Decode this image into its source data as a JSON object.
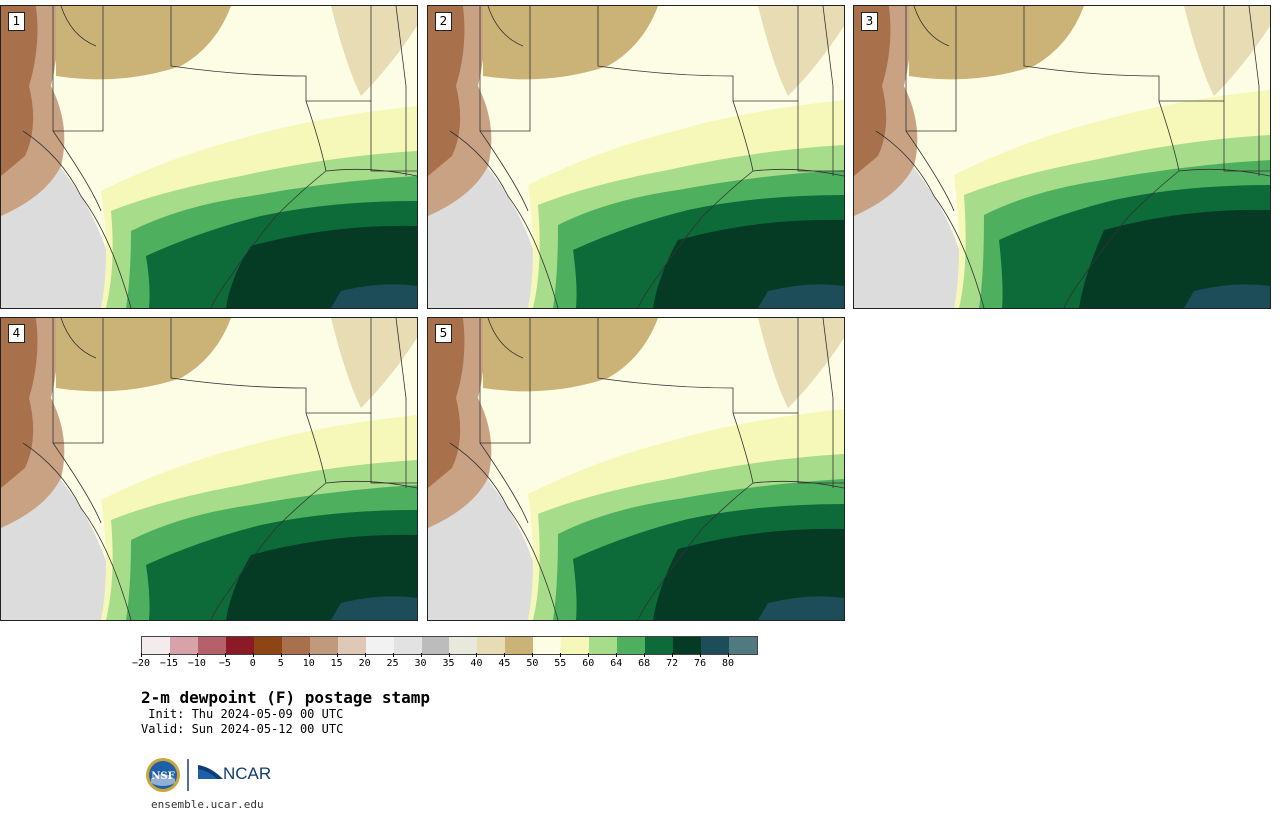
{
  "panels": [
    {
      "label": "1"
    },
    {
      "label": "2"
    },
    {
      "label": "3"
    },
    {
      "label": "4"
    },
    {
      "label": "5"
    }
  ],
  "colorbar": {
    "ticks": [
      "−20",
      "−15",
      "−10",
      "−5",
      "0",
      "5",
      "10",
      "15",
      "20",
      "25",
      "30",
      "35",
      "40",
      "45",
      "50",
      "55",
      "60",
      "64",
      "68",
      "72",
      "76",
      "80"
    ],
    "colors": [
      "#f4ecec",
      "#d8a3a8",
      "#b4616a",
      "#8b1a24",
      "#8c4513",
      "#a8714b",
      "#c19a7c",
      "#e0c8b7",
      "#f2f2f2",
      "#e2e2e2",
      "#bcbcbc",
      "#e8e8dc",
      "#e7dcb4",
      "#cbb277",
      "#fdfde6",
      "#f5f8b8",
      "#a6dc8a",
      "#4eb05f",
      "#0c6b39",
      "#053b25",
      "#1d4d59",
      "#4f7a80"
    ]
  },
  "caption": {
    "title": "2-m dewpoint (F) postage stamp",
    "init": " Init: Thu 2024-05-09 00 UTC",
    "valid": "Valid: Sun 2024-05-12 00 UTC"
  },
  "logos": {
    "nsf": "NSF",
    "ncar": "NCAR"
  },
  "site": "ensemble.ucar.edu"
}
